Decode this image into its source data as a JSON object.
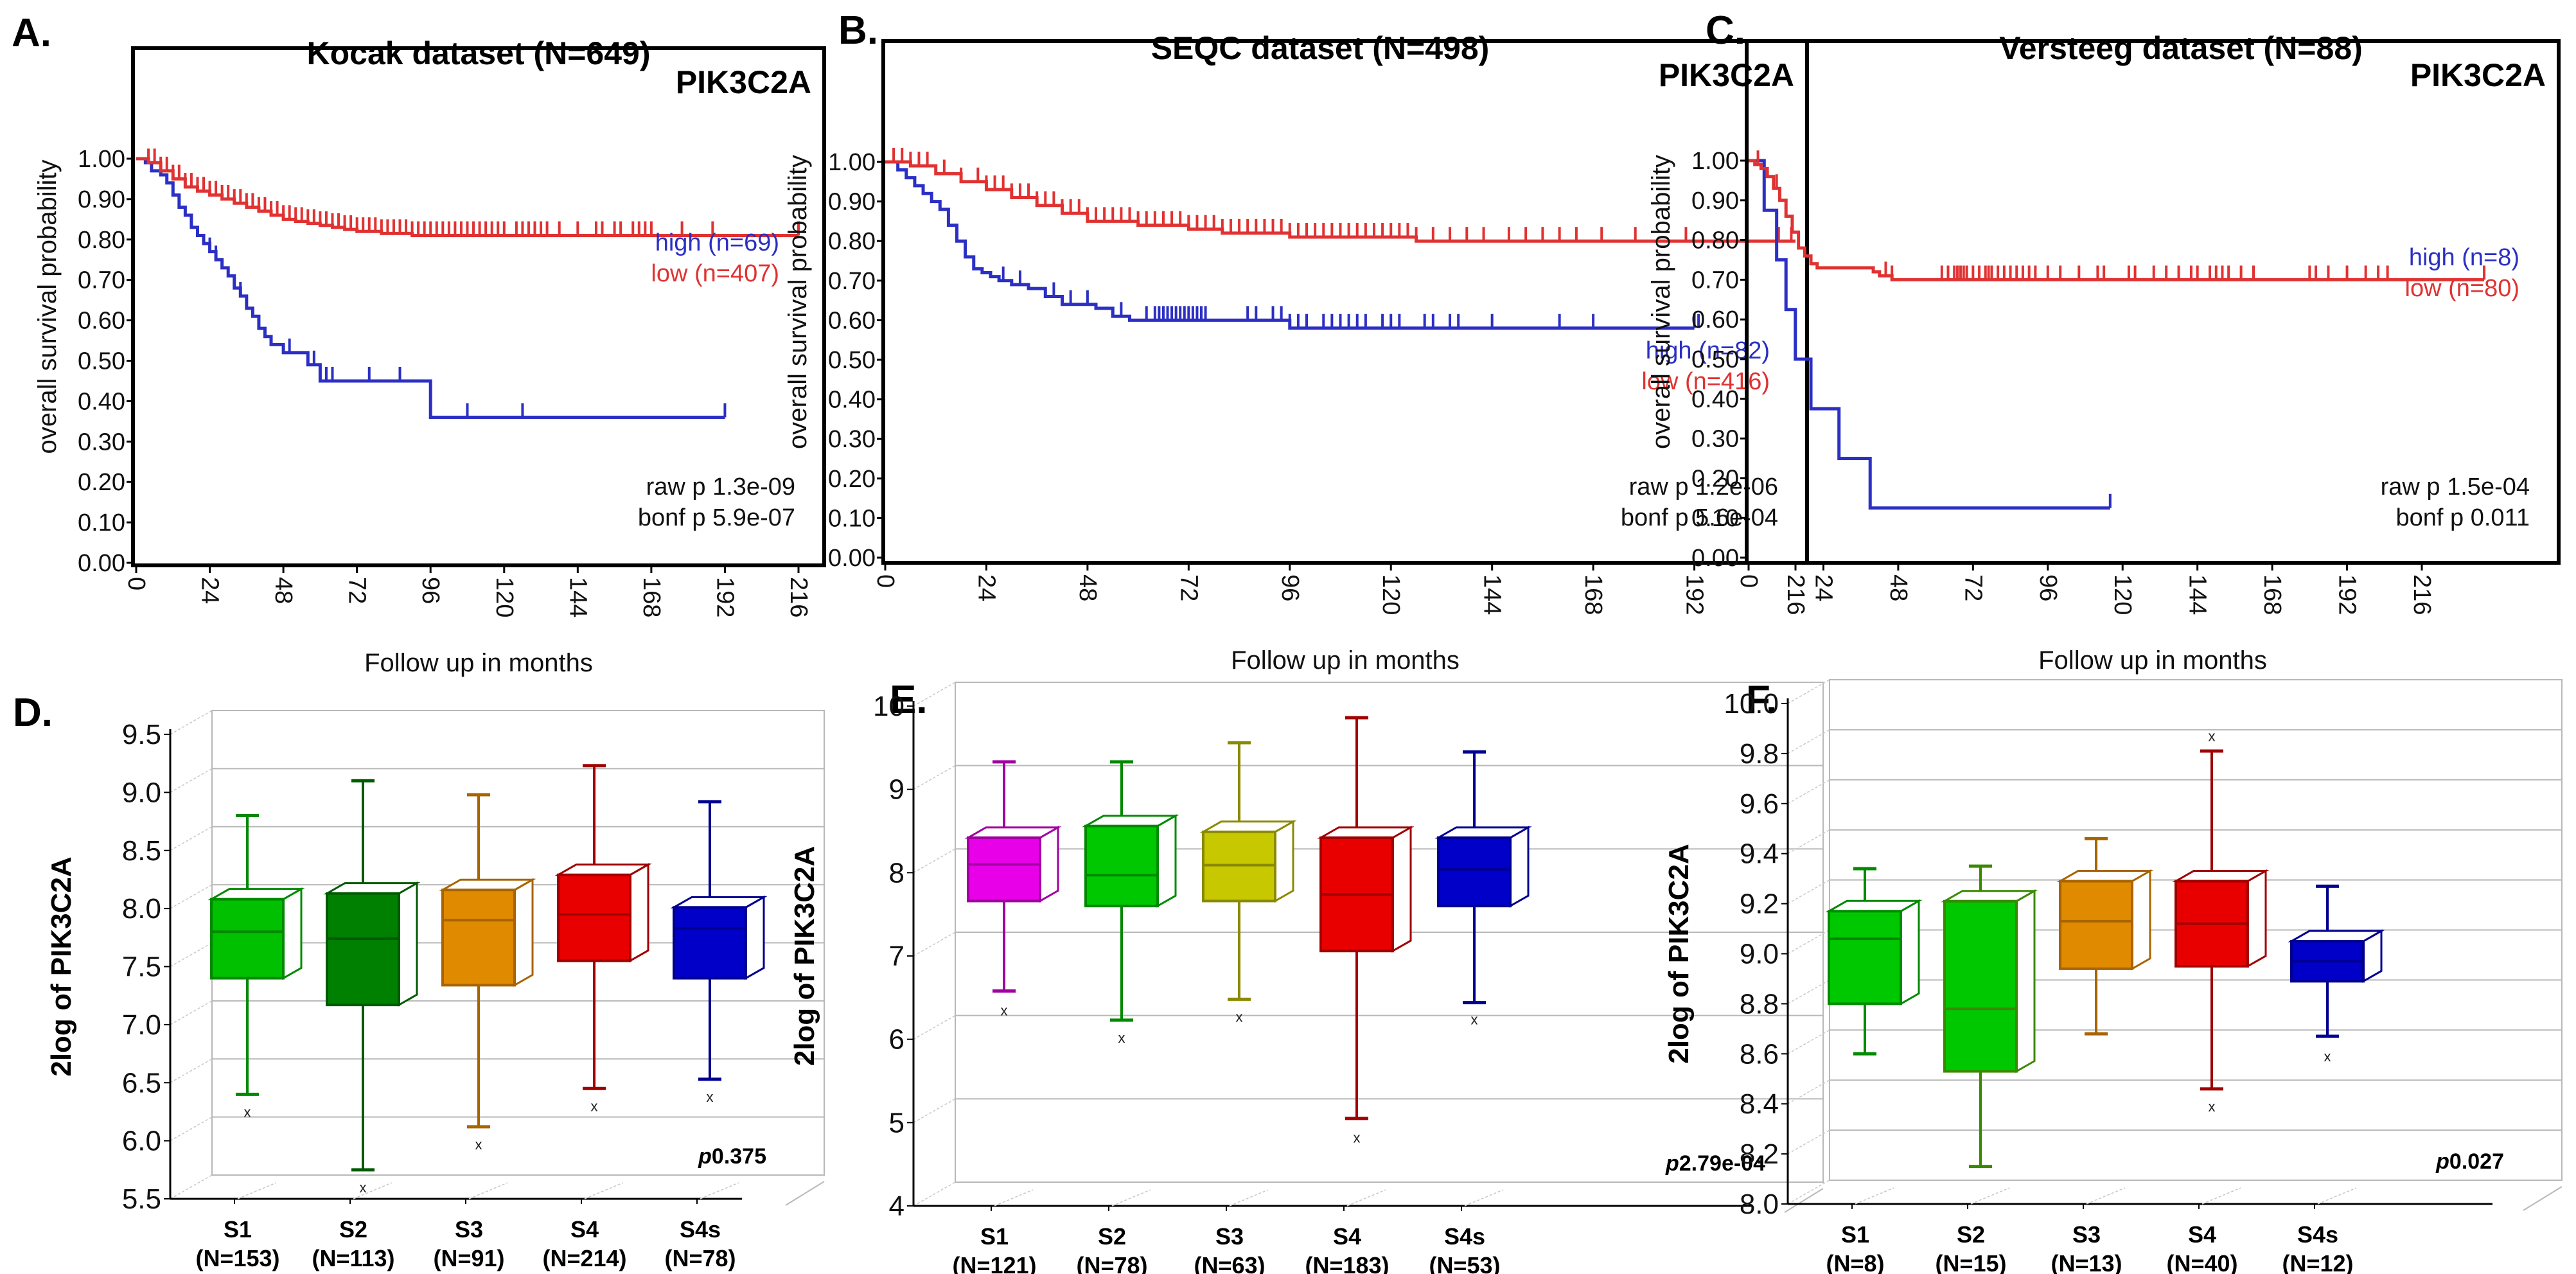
{
  "figure": {
    "gene": "PIK3C2A",
    "colors": {
      "high": "#2b2fc4",
      "low": "#e03232"
    }
  },
  "chart_data": [
    {
      "panel": "A.",
      "type": "line",
      "subtype": "kaplan-meier",
      "title": "Kocak dataset (N=649)",
      "gene_label": "PIK3C2A",
      "xlabel": "Follow up in months",
      "ylabel": "overall survival probability",
      "xlim": [
        0,
        216
      ],
      "ylim": [
        0,
        1
      ],
      "xticks": [
        "0",
        "24",
        "48",
        "72",
        "96",
        "120",
        "144",
        "168",
        "192",
        "216"
      ],
      "yticks": [
        "0.00",
        "0.10",
        "0.20",
        "0.30",
        "0.40",
        "0.50",
        "0.60",
        "0.70",
        "0.80",
        "0.90",
        "1.00"
      ],
      "legend": [
        {
          "label": "high (n=69)",
          "color": "#2b2fc4"
        },
        {
          "label": "low (n=407)",
          "color": "#e03232"
        }
      ],
      "stats": [
        "raw p 1.3e-09",
        "bonf p 5.9e-07"
      ],
      "series": [
        {
          "name": "high",
          "color": "#2b2fc4",
          "x": [
            0,
            3,
            5,
            8,
            10,
            12,
            14,
            16,
            18,
            20,
            22,
            24,
            26,
            28,
            30,
            32,
            34,
            36,
            38,
            40,
            42,
            44,
            46,
            48,
            52,
            56,
            60,
            95,
            96,
            192
          ],
          "y": [
            1.0,
            0.99,
            0.97,
            0.96,
            0.94,
            0.91,
            0.88,
            0.86,
            0.83,
            0.81,
            0.79,
            0.77,
            0.75,
            0.73,
            0.71,
            0.68,
            0.66,
            0.63,
            0.61,
            0.58,
            0.56,
            0.54,
            0.54,
            0.52,
            0.52,
            0.49,
            0.45,
            0.45,
            0.36,
            0.36
          ],
          "censor_x": [
            24,
            26,
            34,
            50,
            58,
            60,
            62,
            64,
            76,
            86,
            108,
            126,
            192
          ]
        },
        {
          "name": "low",
          "color": "#e03232",
          "x": [
            0,
            4,
            8,
            12,
            16,
            20,
            24,
            28,
            32,
            36,
            40,
            44,
            48,
            52,
            56,
            60,
            64,
            68,
            72,
            80,
            90,
            120,
            216
          ],
          "y": [
            1.0,
            0.99,
            0.97,
            0.95,
            0.93,
            0.92,
            0.91,
            0.9,
            0.89,
            0.88,
            0.87,
            0.86,
            0.85,
            0.845,
            0.84,
            0.835,
            0.83,
            0.825,
            0.82,
            0.815,
            0.81,
            0.81,
            0.81
          ],
          "censor_x": [
            4,
            6,
            8,
            10,
            12,
            14,
            16,
            18,
            20,
            22,
            24,
            26,
            28,
            30,
            32,
            34,
            36,
            38,
            40,
            42,
            44,
            46,
            48,
            50,
            52,
            54,
            56,
            58,
            60,
            62,
            64,
            66,
            68,
            70,
            72,
            74,
            76,
            78,
            80,
            82,
            84,
            86,
            88,
            90,
            92,
            94,
            96,
            98,
            100,
            102,
            104,
            106,
            108,
            110,
            112,
            114,
            116,
            118,
            120,
            124,
            126,
            128,
            130,
            132,
            134,
            138,
            144,
            150,
            152,
            156,
            158,
            162,
            164,
            166,
            168,
            178,
            188,
            216
          ]
        }
      ]
    },
    {
      "panel": "B.",
      "type": "line",
      "subtype": "kaplan-meier",
      "title": "SEQC dataset (N=498)",
      "gene_label": "PIK3C2A",
      "xlabel": "Follow up in months",
      "ylabel": "overall survival probability",
      "xlim": [
        0,
        216
      ],
      "ylim": [
        0,
        1
      ],
      "xticks": [
        "0",
        "24",
        "48",
        "72",
        "96",
        "120",
        "144",
        "168",
        "192",
        "216"
      ],
      "yticks": [
        "0.00",
        "0.10",
        "0.20",
        "0.30",
        "0.40",
        "0.50",
        "0.60",
        "0.70",
        "0.80",
        "0.90",
        "1.00"
      ],
      "legend": [
        {
          "label": "high (n=82)",
          "color": "#2b2fc4"
        },
        {
          "label": "low (n=416)",
          "color": "#e03232"
        }
      ],
      "stats": [
        "raw p 1.2e-06",
        "bonf p 5.6e-04"
      ],
      "series": [
        {
          "name": "high",
          "color": "#2b2fc4",
          "x": [
            0,
            3,
            5,
            7,
            9,
            11,
            13,
            15,
            17,
            19,
            21,
            23,
            25,
            27,
            30,
            34,
            38,
            42,
            46,
            50,
            54,
            58,
            95,
            96,
            192
          ],
          "y": [
            1.0,
            0.98,
            0.96,
            0.94,
            0.92,
            0.9,
            0.88,
            0.84,
            0.8,
            0.76,
            0.73,
            0.72,
            0.71,
            0.7,
            0.69,
            0.68,
            0.66,
            0.64,
            0.64,
            0.63,
            0.61,
            0.6,
            0.6,
            0.58,
            0.58
          ],
          "censor_x": [
            28,
            32,
            40,
            44,
            48,
            56,
            62,
            64,
            65,
            66,
            67,
            68,
            69,
            70,
            71,
            72,
            73,
            74,
            75,
            76,
            86,
            88,
            92,
            94,
            96,
            98,
            100,
            104,
            106,
            108,
            110,
            112,
            114,
            118,
            120,
            122,
            128,
            130,
            134,
            136,
            144,
            160,
            168,
            192,
            193
          ]
        },
        {
          "name": "low",
          "color": "#e03232",
          "x": [
            0,
            6,
            12,
            18,
            24,
            30,
            36,
            42,
            48,
            54,
            60,
            66,
            72,
            80,
            88,
            96,
            110,
            126,
            216
          ],
          "y": [
            1.0,
            0.99,
            0.97,
            0.95,
            0.93,
            0.91,
            0.89,
            0.87,
            0.85,
            0.85,
            0.84,
            0.84,
            0.83,
            0.82,
            0.82,
            0.81,
            0.81,
            0.8,
            0.8
          ],
          "censor_x": [
            2,
            4,
            6,
            8,
            10,
            14,
            18,
            22,
            24,
            26,
            28,
            30,
            32,
            34,
            36,
            38,
            40,
            42,
            44,
            46,
            48,
            50,
            52,
            54,
            56,
            58,
            60,
            62,
            64,
            66,
            68,
            70,
            72,
            74,
            76,
            78,
            80,
            82,
            84,
            86,
            88,
            90,
            92,
            94,
            96,
            98,
            100,
            102,
            104,
            106,
            108,
            110,
            112,
            114,
            116,
            118,
            120,
            122,
            124,
            126,
            130,
            134,
            138,
            142,
            148,
            152,
            156,
            160,
            164,
            170,
            178,
            190,
            212,
            215
          ]
        }
      ]
    },
    {
      "panel": "C.",
      "type": "line",
      "subtype": "kaplan-meier",
      "title": "Versteeg dataset (N=88)",
      "gene_label": "PIK3C2A",
      "xlabel": "Follow up in months",
      "ylabel": "overall survival probability",
      "xlim": [
        0,
        240
      ],
      "ylim": [
        0,
        1
      ],
      "xticks": [
        "0",
        "24",
        "48",
        "72",
        "96",
        "120",
        "144",
        "168",
        "192",
        "216"
      ],
      "yticks": [
        "0.00",
        "0.10",
        "0.20",
        "0.30",
        "0.40",
        "0.50",
        "0.60",
        "0.70",
        "0.80",
        "0.90",
        "1.00"
      ],
      "legend": [
        {
          "label": "high (n=8)",
          "color": "#2b2fc4"
        },
        {
          "label": "low (n=80)",
          "color": "#e03232"
        }
      ],
      "stats": [
        "raw p 1.5e-04",
        "bonf p 0.011"
      ],
      "series": [
        {
          "name": "high",
          "color": "#2b2fc4",
          "x": [
            0,
            5,
            7,
            10,
            13,
            15,
            19,
            29,
            38,
            116
          ],
          "y": [
            1.0,
            1.0,
            0.875,
            0.875,
            0.75,
            0.625,
            0.5,
            0.375,
            0.25,
            0.125
          ],
          "steps": [
            [
              0,
              1.0
            ],
            [
              5,
              0.875
            ],
            [
              9,
              0.75
            ],
            [
              12,
              0.625
            ],
            [
              15,
              0.5
            ],
            [
              20,
              0.375
            ],
            [
              29,
              0.25
            ],
            [
              39,
              0.125
            ],
            [
              116,
              0.125
            ]
          ],
          "censor_x": [
            116
          ]
        },
        {
          "name": "low",
          "color": "#e03232",
          "x": [
            0,
            2,
            4,
            6,
            8,
            10,
            12,
            14,
            16,
            18,
            20,
            22,
            24,
            40,
            42,
            46,
            236
          ],
          "y": [
            1.0,
            0.99,
            0.98,
            0.96,
            0.93,
            0.9,
            0.86,
            0.82,
            0.78,
            0.76,
            0.74,
            0.73,
            0.73,
            0.72,
            0.71,
            0.7,
            0.7
          ],
          "censor_x": [
            3,
            9,
            44,
            46,
            62,
            64,
            66,
            67,
            68,
            69,
            70,
            72,
            74,
            76,
            77,
            78,
            80,
            82,
            84,
            86,
            88,
            90,
            92,
            96,
            100,
            106,
            112,
            114,
            122,
            124,
            130,
            134,
            138,
            142,
            144,
            148,
            150,
            152,
            154,
            158,
            162,
            180,
            182,
            186,
            192,
            198,
            202,
            205,
            236
          ]
        }
      ]
    },
    {
      "panel": "D.",
      "type": "box",
      "title": "",
      "xlabel": "",
      "ylabel": "2log of PIK3C2A",
      "ylim": [
        5.5,
        9.5
      ],
      "yticks": [
        "5.5",
        "6.0",
        "6.5",
        "7.0",
        "7.5",
        "8.0",
        "8.5",
        "9.0",
        "9.5"
      ],
      "categories": [
        "S1",
        "S2",
        "S3",
        "S4",
        "S4s"
      ],
      "counts": [
        "(N=153)",
        "(N=113)",
        "(N=91)",
        "(N=214)",
        "(N=78)"
      ],
      "pvalue_prefix": "p",
      "pvalue": "0.375",
      "boxes": [
        {
          "name": "S1",
          "color": "#00c000",
          "edge": "#008a00",
          "whisker_low": 6.4,
          "q1": 7.4,
          "median": 7.8,
          "q3": 8.08,
          "whisker_high": 8.8,
          "outlier": 6.25
        },
        {
          "name": "S2",
          "color": "#008000",
          "edge": "#005a00",
          "whisker_low": 5.75,
          "q1": 7.17,
          "median": 7.74,
          "q3": 8.13,
          "whisker_high": 9.1,
          "outlier": 5.6
        },
        {
          "name": "S3",
          "color": "#e08a00",
          "edge": "#a86400",
          "whisker_low": 6.12,
          "q1": 7.34,
          "median": 7.9,
          "q3": 8.16,
          "whisker_high": 8.98,
          "outlier": 5.97
        },
        {
          "name": "S4",
          "color": "#e80000",
          "edge": "#a00000",
          "whisker_low": 6.45,
          "q1": 7.55,
          "median": 7.95,
          "q3": 8.29,
          "whisker_high": 9.23,
          "outlier": 6.3
        },
        {
          "name": "S4s",
          "color": "#0000c8",
          "edge": "#000090",
          "whisker_low": 6.53,
          "q1": 7.4,
          "median": 7.83,
          "q3": 8.01,
          "whisker_high": 8.92,
          "outlier": 6.38
        }
      ]
    },
    {
      "panel": "E.",
      "type": "box",
      "title": "",
      "xlabel": "",
      "ylabel": "2log of PIK3C2A",
      "ylim": [
        4,
        10
      ],
      "yticks": [
        "4",
        "5",
        "6",
        "7",
        "8",
        "9",
        "10"
      ],
      "categories": [
        "S1",
        "S2",
        "S3",
        "S4",
        "S4s"
      ],
      "counts": [
        "(N=121)",
        "(N=78)",
        "(N=63)",
        "(N=183)",
        "(N=53)"
      ],
      "pvalue_prefix": "p",
      "pvalue": "2.79e-04",
      "boxes": [
        {
          "name": "S1",
          "color": "#e800e8",
          "edge": "#a000a0",
          "whisker_low": 6.58,
          "q1": 7.66,
          "median": 8.1,
          "q3": 8.42,
          "whisker_high": 9.33,
          "outlier": 6.35
        },
        {
          "name": "S2",
          "color": "#00c800",
          "edge": "#008a00",
          "whisker_low": 6.23,
          "q1": 7.6,
          "median": 7.97,
          "q3": 8.56,
          "whisker_high": 9.33,
          "outlier": 6.02
        },
        {
          "name": "S3",
          "color": "#c8c800",
          "edge": "#8a8a00",
          "whisker_low": 6.48,
          "q1": 7.66,
          "median": 8.09,
          "q3": 8.49,
          "whisker_high": 9.56,
          "outlier": 6.27
        },
        {
          "name": "S4",
          "color": "#e80000",
          "edge": "#a00000",
          "whisker_low": 5.05,
          "q1": 7.06,
          "median": 7.74,
          "q3": 8.42,
          "whisker_high": 9.86,
          "outlier": 4.82
        },
        {
          "name": "S4s",
          "color": "#0000c8",
          "edge": "#000090",
          "whisker_low": 6.44,
          "q1": 7.6,
          "median": 8.04,
          "q3": 8.42,
          "whisker_high": 9.45,
          "outlier": 6.24
        }
      ]
    },
    {
      "panel": "F.",
      "type": "box",
      "title": "",
      "xlabel": "",
      "ylabel": "2log of PIK3C2A",
      "ylim": [
        8.0,
        10.0
      ],
      "yticks": [
        "8.0",
        "8.2",
        "8.4",
        "8.6",
        "8.8",
        "9.0",
        "9.2",
        "9.4",
        "9.6",
        "9.8",
        "10.0"
      ],
      "categories": [
        "S1",
        "S2",
        "S3",
        "S4",
        "S4s"
      ],
      "counts": [
        "(N=8)",
        "(N=15)",
        "(N=13)",
        "(N=40)",
        "(N=12)"
      ],
      "pvalue_prefix": "p",
      "pvalue": "0.027",
      "boxes": [
        {
          "name": "S1",
          "color": "#00c800",
          "edge": "#008a00",
          "whisker_low": 8.6,
          "q1": 8.8,
          "median": 9.06,
          "q3": 9.17,
          "whisker_high": 9.34,
          "outlier": null
        },
        {
          "name": "S2",
          "color": "#00c800",
          "edge": "#3a8a00",
          "whisker_low": 8.15,
          "q1": 8.53,
          "median": 8.78,
          "q3": 9.21,
          "whisker_high": 9.35,
          "outlier": null
        },
        {
          "name": "S3",
          "color": "#e08a00",
          "edge": "#a86400",
          "whisker_low": 8.68,
          "q1": 8.94,
          "median": 9.13,
          "q3": 9.29,
          "whisker_high": 9.46,
          "outlier": null
        },
        {
          "name": "S4",
          "color": "#e80000",
          "edge": "#a00000",
          "whisker_low": 8.46,
          "q1": 8.95,
          "median": 9.12,
          "q3": 9.29,
          "whisker_high": 9.81,
          "outlier": 9.87,
          "outlier2": 8.39
        },
        {
          "name": "S4s",
          "color": "#0000c8",
          "edge": "#000090",
          "whisker_low": 8.67,
          "q1": 8.89,
          "median": 8.97,
          "q3": 9.05,
          "whisker_high": 9.27,
          "outlier": 8.59
        }
      ]
    }
  ]
}
